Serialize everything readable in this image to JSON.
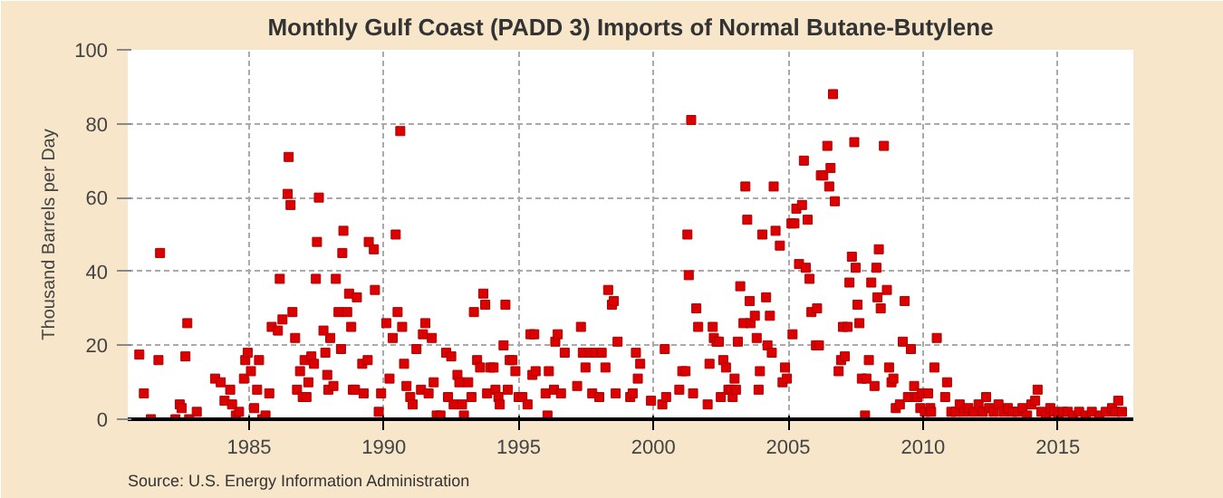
{
  "chart_data": {
    "type": "scatter",
    "title": "Monthly Gulf Coast (PADD 3) Imports of Normal Butane-Butylene",
    "ylabel": "Thousand Barrels per Day",
    "annotations": [
      "Source: U.S. Energy Information Administration"
    ],
    "xlim": [
      1980.5,
      2017.8
    ],
    "xticks": [
      1985,
      1990,
      1995,
      2000,
      2005,
      2010,
      2015
    ],
    "ylim": [
      0,
      100
    ],
    "yticks": [
      0,
      20,
      40,
      60,
      80,
      100
    ],
    "grid": true,
    "marker": "square",
    "series": [
      {
        "color": "#dd0000",
        "x": [
          1980.93,
          1981.1,
          1981.36,
          1981.7,
          1981.64,
          1982.27,
          1982.43,
          1982.5,
          1982.64,
          1982.71,
          1982.78,
          1983.06,
          1983.74,
          1983.95,
          1984.09,
          1984.3,
          1984.37,
          1984.51,
          1984.63,
          1984.81,
          1984.86,
          1984.95,
          1985.07,
          1985.19,
          1985.3,
          1985.37,
          1985.49,
          1985.61,
          1985.75,
          1985.84,
          1986.07,
          1986.14,
          1986.24,
          1986.43,
          1986.47,
          1986.54,
          1986.61,
          1986.71,
          1986.78,
          1986.89,
          1986.99,
          1987.06,
          1987.13,
          1987.2,
          1987.31,
          1987.41,
          1987.48,
          1987.52,
          1987.59,
          1987.76,
          1987.83,
          1987.9,
          1988.01,
          1987.94,
          1988.13,
          1988.22,
          1988.32,
          1988.41,
          1988.46,
          1988.5,
          1988.64,
          1988.71,
          1988.79,
          1988.85,
          1988.93,
          1989.0,
          1989.2,
          1989.4,
          1989.44,
          1989.63,
          1989.67,
          1989.25,
          1989.81,
          1989.9,
          1990.09,
          1990.21,
          1990.33,
          1990.44,
          1990.51,
          1990.61,
          1990.68,
          1990.75,
          1990.84,
          1990.98,
          1991.07,
          1991.21,
          1991.38,
          1991.45,
          1991.54,
          1991.66,
          1991.78,
          1991.85,
          1991.96,
          1992.1,
          1992.31,
          1992.38,
          1992.5,
          1992.59,
          1992.73,
          1992.8,
          1992.9,
          1992.97,
          1993.13,
          1993.25,
          1993.34,
          1993.46,
          1993.57,
          1993.69,
          1993.76,
          1993.83,
          1993.95,
          1994.07,
          1994.14,
          1994.25,
          1994.3,
          1994.44,
          1994.51,
          1994.6,
          1994.67,
          1994.77,
          1994.88,
          1995.0,
          1995.14,
          1995.33,
          1995.44,
          1995.58,
          1995.51,
          1995.63,
          1996.0,
          1996.07,
          1996.12,
          1996.31,
          1996.36,
          1996.45,
          1996.57,
          1996.71,
          1997.17,
          1997.31,
          1997.38,
          1997.48,
          1997.64,
          1997.73,
          1997.85,
          1997.99,
          1998.08,
          1998.22,
          1998.32,
          1998.46,
          1998.53,
          1998.6,
          1998.67,
          1999.14,
          1999.23,
          1999.35,
          1999.42,
          1999.51,
          1999.91,
          2000.33,
          2000.47,
          2000.42,
          2000.96,
          2001.07,
          2001.19,
          2001.26,
          2001.31,
          2001.4,
          2001.47,
          2001.59,
          2001.66,
          2002.01,
          2002.08,
          2002.2,
          2002.24,
          2002.34,
          2002.43,
          2002.5,
          2002.59,
          2002.69,
          2002.78,
          2002.87,
          2002.94,
          2003.01,
          2003.06,
          2003.13,
          2003.22,
          2003.34,
          2003.41,
          2003.48,
          2003.57,
          2003.6,
          2003.76,
          2003.83,
          2003.9,
          2003.95,
          2004.04,
          2004.18,
          2004.23,
          2004.32,
          2004.39,
          2004.46,
          2004.53,
          2004.69,
          2004.79,
          2004.88,
          2004.95,
          2005.16,
          2005.12,
          2005.23,
          2005.3,
          2005.4,
          2005.51,
          2005.58,
          2005.65,
          2005.72,
          2005.79,
          2005.86,
          2006.07,
          2006.03,
          2006.14,
          2006.21,
          2006.3,
          2006.45,
          2006.57,
          2006.52,
          2006.66,
          2006.73,
          2006.87,
          2006.96,
          2007.1,
          2007.03,
          2007.2,
          2007.27,
          2007.36,
          2007.45,
          2007.5,
          2007.57,
          2007.64,
          2007.73,
          2007.85,
          2007.9,
          2007.99,
          2008.08,
          2008.2,
          2008.27,
          2008.36,
          2008.31,
          2008.43,
          2008.55,
          2008.66,
          2008.74,
          2008.83,
          2008.9,
          2008.99,
          2009.14,
          2009.25,
          2009.32,
          2009.44,
          2009.55,
          2009.67,
          2009.72,
          2009.79,
          2009.9,
          2009.95,
          2010.07,
          2010.19,
          2010.27,
          2010.3,
          2010.42,
          2010.51,
          2010.89,
          2010.82,
          2011.05,
          2011.21,
          2011.36,
          2011.52,
          2011.68,
          2011.87,
          2012.06,
          2012.22,
          2012.34,
          2012.45,
          2012.62,
          2012.8,
          2012.99,
          2013.15,
          2013.32,
          2013.5,
          2013.69,
          2013.86,
          2014.02,
          2014.16,
          2014.25,
          2014.39,
          2014.56,
          2014.72,
          2014.86,
          2015.02,
          2015.19,
          2015.37,
          2015.56,
          2015.79,
          2016.03,
          2016.26,
          2016.54,
          2016.78,
          2017.01,
          2017.13,
          2017.24,
          2017.38
        ],
        "values": [
          17.5,
          7,
          0,
          45,
          16,
          0,
          4,
          3,
          17,
          26,
          0,
          2,
          11,
          10,
          5,
          8,
          4,
          1,
          2,
          11,
          16,
          18,
          13,
          3,
          8,
          16,
          0,
          1,
          7,
          25,
          24,
          38,
          27,
          61,
          71,
          58,
          29,
          22,
          8,
          13,
          6,
          16,
          6,
          10,
          17,
          15,
          38,
          48,
          60,
          24,
          18,
          12,
          22,
          8,
          9,
          38,
          29,
          19,
          45,
          51,
          29,
          34,
          25,
          8,
          8,
          33,
          15,
          16,
          48,
          46,
          35,
          7,
          2,
          7,
          26,
          11,
          22,
          50,
          29,
          78,
          25,
          15,
          9,
          6,
          4,
          19,
          8,
          23,
          26,
          7,
          22,
          10,
          1,
          1,
          18,
          6,
          17,
          4,
          12,
          10,
          4,
          1,
          10,
          6,
          29,
          16,
          14,
          34,
          31,
          7,
          14,
          14,
          8,
          6,
          4,
          20,
          31,
          8,
          16,
          16,
          13,
          6,
          6,
          4,
          23,
          23,
          12,
          13,
          7,
          1,
          13,
          8,
          21,
          23,
          7,
          18,
          9,
          25,
          18,
          14,
          18,
          7,
          18,
          6,
          18,
          14,
          35,
          31,
          32,
          7,
          21,
          6,
          7,
          18,
          11,
          15,
          5,
          4,
          6,
          19,
          8,
          13,
          13,
          50,
          39,
          81,
          7,
          30,
          25,
          4,
          15,
          25,
          22,
          21,
          21,
          6,
          16,
          14,
          8,
          8,
          6,
          11,
          8,
          21,
          36,
          26,
          63,
          54,
          32,
          26,
          28,
          22,
          8,
          13,
          50,
          33,
          20,
          28,
          18,
          63,
          51,
          47,
          10,
          14,
          11,
          23,
          53,
          53,
          57,
          42,
          58,
          70,
          41,
          54,
          38,
          29,
          30,
          20,
          20,
          66,
          66,
          74,
          68,
          63,
          88,
          59,
          13,
          16,
          17,
          25,
          25,
          37,
          44,
          75,
          41,
          31,
          26,
          11,
          1,
          11,
          16,
          37,
          9,
          41,
          46,
          33,
          30,
          74,
          35,
          14,
          10,
          11,
          3,
          4,
          21,
          32,
          6,
          19,
          9,
          6,
          6,
          3,
          7,
          2,
          7,
          3,
          2,
          14,
          22,
          10,
          6,
          2,
          2,
          4,
          2,
          3,
          2,
          4,
          2,
          6,
          3,
          2,
          4,
          2,
          3,
          2,
          2,
          3,
          1,
          4,
          5,
          8,
          2,
          1,
          3,
          2,
          1,
          2,
          2,
          1,
          2,
          1,
          2,
          1,
          2,
          3,
          2,
          5,
          2
        ]
      }
    ]
  }
}
